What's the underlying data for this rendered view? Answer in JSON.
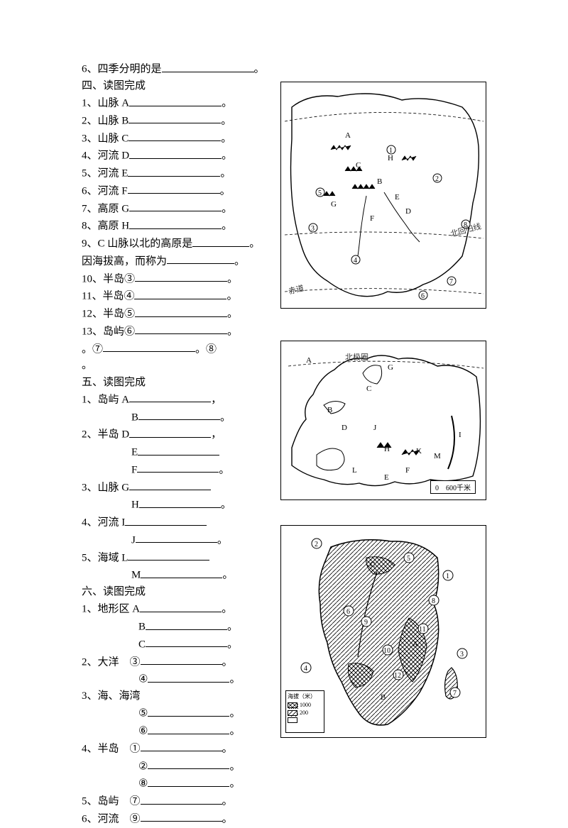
{
  "q6": {
    "prefix": "6、四季分明的是",
    "suffix": "。"
  },
  "sec4": {
    "title": "四、读图完成",
    "items": [
      {
        "prefix": "1、山脉 A",
        "suffix": "。"
      },
      {
        "prefix": "2、山脉 B",
        "suffix": "。"
      },
      {
        "prefix": "3、山脉 C",
        "suffix": "。"
      },
      {
        "prefix": "4、河流 D",
        "suffix": "。"
      },
      {
        "prefix": "5、河流 E",
        "suffix": "。"
      },
      {
        "prefix": "6、河流 F",
        "suffix": "。"
      },
      {
        "prefix": "7、高原 G",
        "suffix": "。"
      },
      {
        "prefix": "8、高原 H",
        "suffix": "。"
      }
    ],
    "q9a": {
      "prefix": "9、C 山脉以北的高原是",
      "suffix": "。"
    },
    "q9b": {
      "prefix": "因海拔高，而称为",
      "suffix": "。"
    },
    "items2": [
      {
        "prefix": "10、半岛③",
        "suffix": "。"
      },
      {
        "prefix": "11、半岛④",
        "suffix": "。"
      },
      {
        "prefix": "12、半岛⑤",
        "suffix": "。"
      },
      {
        "prefix": "13、岛屿⑥",
        "suffix": "。"
      }
    ],
    "tail": {
      "p1": "。⑦",
      "p2": "。⑧",
      "p3": "。"
    }
  },
  "sec5": {
    "title": "五、读图完成",
    "rows": [
      {
        "prefix": "1、岛屿 A",
        "suffix": "，"
      },
      {
        "prefix": "B",
        "suffix": "。",
        "indent": true
      },
      {
        "prefix": "2、半岛 D",
        "suffix": "，"
      },
      {
        "prefix": "E",
        "suffix": "",
        "indent": true
      },
      {
        "prefix": "F",
        "suffix": "。",
        "indent": true
      },
      {
        "prefix": "3、山脉 G",
        "suffix": "",
        "indent": false
      },
      {
        "prefix": "H",
        "suffix": "。",
        "indent": true
      },
      {
        "prefix": "4、河流 I",
        "suffix": "",
        "indent": false
      },
      {
        "prefix": "J",
        "suffix": "。",
        "indent": true
      },
      {
        "prefix": "5、海域 L",
        "suffix": "",
        "indent": false
      },
      {
        "prefix": "M",
        "suffix": "。",
        "indent": true
      }
    ]
  },
  "sec6": {
    "title": "六、读图完成",
    "rows": [
      {
        "prefix": "1、地形区 A",
        "suffix": "。"
      },
      {
        "prefix": "B",
        "suffix": "。",
        "indent": true
      },
      {
        "prefix": "C",
        "suffix": "。",
        "indent": true
      },
      {
        "prefix": "2、大洋　③",
        "suffix": "。"
      },
      {
        "prefix": "④",
        "suffix": "。",
        "indent": true
      },
      {
        "prefix": "3、海、海湾",
        "suffix": ""
      },
      {
        "prefix": "⑤",
        "suffix": "。",
        "indent": true
      },
      {
        "prefix": "⑥",
        "suffix": "。",
        "indent": true
      },
      {
        "prefix": "4、半岛　①",
        "suffix": "。"
      },
      {
        "prefix": "②",
        "suffix": "。",
        "indent": true
      },
      {
        "prefix": "⑧",
        "suffix": "。",
        "indent": true
      },
      {
        "prefix": "5、岛屿　⑦",
        "suffix": "。"
      },
      {
        "prefix": "6、河流　⑨",
        "suffix": "。"
      }
    ]
  },
  "map1": {
    "labels": {
      "equator": "赤道",
      "tropic": "北回归线"
    }
  },
  "map2": {
    "arctic": "北极圈",
    "scale": "0　600千米"
  },
  "map3": {
    "legend_title": "海拔（米）",
    "legend_vals": [
      "1000",
      "200",
      ""
    ]
  }
}
